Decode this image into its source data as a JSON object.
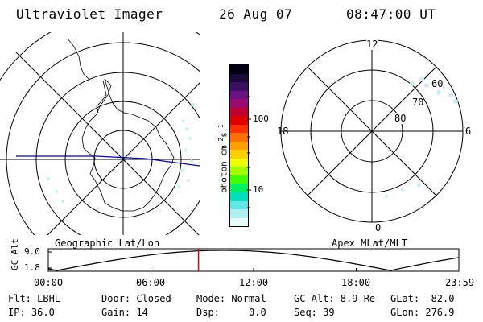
{
  "header": {
    "instrument": "Ultraviolet Imager",
    "date": "26 Aug 07",
    "time": "08:47:00 UT"
  },
  "left_panel": {
    "caption": "Geographic Lat/Lon"
  },
  "right_panel": {
    "caption": "Apex MLat/MLT",
    "mlt_labels": {
      "top": "12",
      "left": "18",
      "right": "6",
      "bottom": "0"
    },
    "lat_labels": [
      "60",
      "70",
      "80"
    ]
  },
  "colorbar": {
    "unit_label": "photon cm-2s-1",
    "unit_main": "photon cm",
    "unit_exp1": "-2",
    "unit_s": "s",
    "unit_exp2": "-1",
    "ticks": [
      "100",
      "10"
    ],
    "colors": [
      "#000010",
      "#1a0a3a",
      "#3a1060",
      "#6a1080",
      "#9a0a70",
      "#c00030",
      "#e00000",
      "#ff3000",
      "#ff7000",
      "#ffa000",
      "#ffd000",
      "#f0ff00",
      "#a0ff00",
      "#40ff00",
      "#00f060",
      "#00e0c0",
      "#60e8e8",
      "#b0f0f0",
      "#e8fafa"
    ]
  },
  "altitude_plot": {
    "ylabel": "GC Alt",
    "y_ticks": [
      "9.0",
      "1.8"
    ],
    "x_ticks": [
      "00:00",
      "06:00",
      "12:00",
      "18:00",
      "23:59"
    ],
    "marker_color": "#e00000",
    "marker_hour": 8.78
  },
  "status": {
    "row1": {
      "flt": "Flt: LBHL",
      "door": "Door: Closed",
      "mode": "Mode: Normal",
      "gc_alt": "GC Alt: 8.9 Re",
      "glat": "GLat: -82.0"
    },
    "row2": {
      "ip": "IP: 36.0",
      "gain": "Gain: 14",
      "dsp": "Dsp:     0.0",
      "seq": "Seq: 39",
      "glon": "GLon: 276.9"
    }
  }
}
